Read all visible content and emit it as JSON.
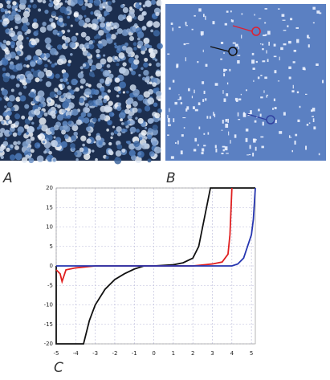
{
  "labels": {
    "a": "A",
    "b": "B",
    "c": "C"
  },
  "chart_data": {
    "type": "line",
    "xlim": [
      -5,
      5.2
    ],
    "ylim": [
      -20,
      20
    ],
    "xticks": [
      -5,
      -4,
      -3,
      -2,
      -1,
      0,
      1,
      2,
      3,
      4,
      5
    ],
    "yticks": [
      20,
      15,
      10,
      5,
      0,
      -5,
      -10,
      -15,
      -20
    ],
    "grid": true,
    "series": [
      {
        "color": "#111111",
        "x": [
          -5,
          -5,
          -3.6,
          -3.3,
          -3,
          -2.5,
          -2,
          -1.5,
          -1,
          -0.5,
          0,
          1,
          1.5,
          2,
          2.3,
          2.5,
          2.7,
          2.9,
          5.2
        ],
        "values": [
          0,
          -20,
          -20,
          -14,
          -10,
          -6,
          -3.5,
          -2,
          -0.8,
          0,
          0,
          0.3,
          0.8,
          2,
          5,
          10,
          15,
          20,
          20
        ]
      },
      {
        "color": "#e02020",
        "x": [
          -5,
          -4.8,
          -4.7,
          -4.5,
          -4,
          -3,
          0,
          2,
          3,
          3.5,
          3.8,
          3.9,
          4
        ],
        "values": [
          -1,
          -2,
          -4,
          -1,
          -0.5,
          0,
          0,
          0,
          0.5,
          1,
          3,
          8,
          20
        ]
      },
      {
        "color": "#2535b0",
        "x": [
          -5,
          0,
          4,
          4.3,
          4.6,
          4.8,
          5,
          5.1,
          5.2
        ],
        "values": [
          0,
          0,
          0,
          0.5,
          2,
          5,
          8,
          12,
          20
        ]
      }
    ]
  }
}
